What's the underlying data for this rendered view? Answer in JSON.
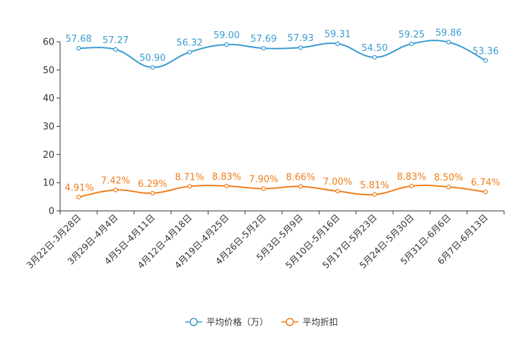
{
  "chart_data": {
    "type": "line",
    "title": "",
    "xlabel": "",
    "ylabel": "",
    "ylim": [
      0,
      60
    ],
    "yticks": [
      0,
      10,
      20,
      30,
      40,
      50,
      60
    ],
    "grid": false,
    "legend_position": "bottom-center",
    "categories": [
      "3月22日-3月28日",
      "3月29日-4月4日",
      "4月5日-4月11日",
      "4月12日-4月18日",
      "4月19日-4月25日",
      "4月26日-5月2日",
      "5月3日-5月9日",
      "5月10日-5月16日",
      "5月17日-5月23日",
      "5月24日-5月30日",
      "5月31日-6月6日",
      "6月7日-6月13日"
    ],
    "series": [
      {
        "name": "平均价格（万）",
        "color": "#3b9bd0",
        "values": [
          57.68,
          57.27,
          50.9,
          56.32,
          59.0,
          57.69,
          57.93,
          59.31,
          54.5,
          59.25,
          59.86,
          53.36
        ],
        "labels": [
          "57.68",
          "57.27",
          "50.90",
          "56.32",
          "59.00",
          "57.69",
          "57.93",
          "59.31",
          "54.50",
          "59.25",
          "59.86",
          "53.36"
        ]
      },
      {
        "name": "平均折扣",
        "color": "#f07d1a",
        "values": [
          4.91,
          7.42,
          6.29,
          8.71,
          8.83,
          7.9,
          8.66,
          7.0,
          5.81,
          8.83,
          8.5,
          6.74
        ],
        "labels": [
          "4.91%",
          "7.42%",
          "6.29%",
          "8.71%",
          "8.83%",
          "7.90%",
          "8.66%",
          "7.00%",
          "5.81%",
          "8.83%",
          "8.50%",
          "6.74%"
        ]
      }
    ]
  }
}
